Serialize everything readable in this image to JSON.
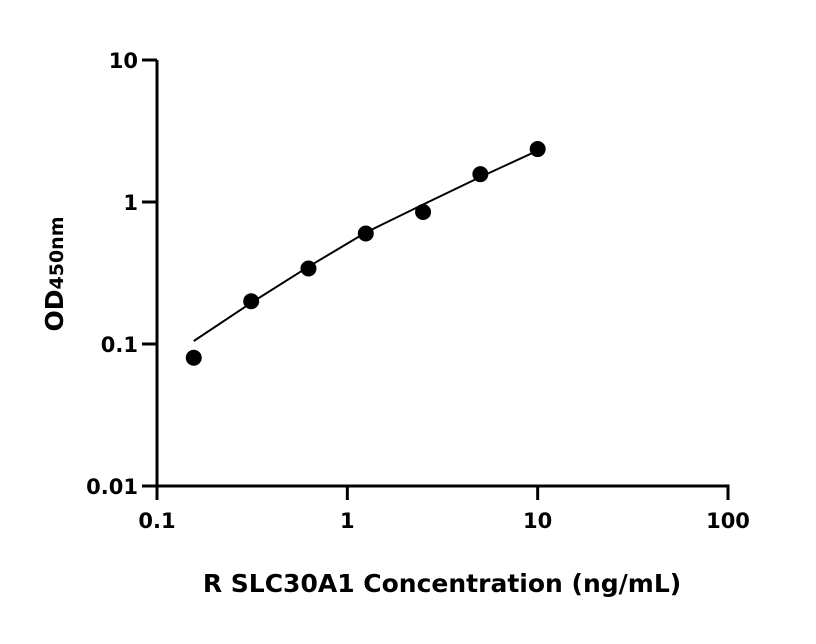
{
  "chart_data": {
    "type": "scatter",
    "title": "",
    "xlabel": "R SLC30A1 Concentration (ng/mL)",
    "ylabel_main": "OD",
    "ylabel_sub": "450nm",
    "x_scale": "log",
    "y_scale": "log",
    "xlim": [
      0.1,
      100
    ],
    "ylim": [
      0.01,
      10
    ],
    "x_ticks": [
      "0.1",
      "1",
      "10",
      "100"
    ],
    "y_ticks": [
      "0.01",
      "0.1",
      "1",
      "10"
    ],
    "grid": false,
    "marker_color": "#000000",
    "points": {
      "x": [
        0.156,
        0.3125,
        0.625,
        1.25,
        2.5,
        5,
        10
      ],
      "y": [
        0.08,
        0.2,
        0.34,
        0.6,
        0.85,
        1.57,
        2.36
      ]
    },
    "fit_curve": {
      "x": [
        0.156,
        0.3125,
        0.625,
        1.25,
        2.5,
        5,
        10
      ],
      "y": [
        0.105,
        0.195,
        0.35,
        0.61,
        0.96,
        1.5,
        2.3
      ]
    }
  }
}
